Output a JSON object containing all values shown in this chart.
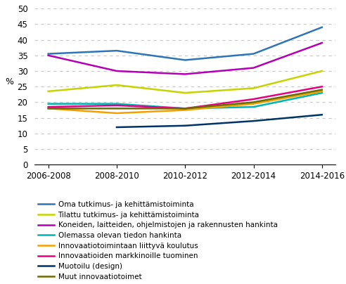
{
  "x_labels": [
    "2006-2008",
    "2008-2010",
    "2010-2012",
    "2012-2014",
    "2014-2016"
  ],
  "x_positions": [
    0,
    1,
    2,
    3,
    4
  ],
  "series": [
    {
      "label": "Oma tutkimus- ja kehittämistoiminta",
      "color": "#2e75b6",
      "values": [
        35.5,
        36.5,
        33.5,
        35.5,
        44.0
      ]
    },
    {
      "label": "Tilattu tutkimus- ja kehittämistoiminta",
      "color": "#c5d400",
      "values": [
        23.5,
        25.5,
        23.0,
        24.5,
        30.0
      ]
    },
    {
      "label": "Koneiden, laitteiden, ohjelmistojen ja rakennusten hankinta",
      "color": "#b400b4",
      "values": [
        35.0,
        30.0,
        29.0,
        31.0,
        39.0
      ]
    },
    {
      "label": "Olemassa olevan tiedon hankinta",
      "color": "#00b4b4",
      "values": [
        19.5,
        19.5,
        18.0,
        18.5,
        23.0
      ]
    },
    {
      "label": "Innovaatiotoimintaan liittyvä koulutus",
      "color": "#f4a100",
      "values": [
        18.0,
        16.5,
        17.5,
        19.5,
        23.5
      ]
    },
    {
      "label": "Innovaatioiden markkinoille tuominen",
      "color": "#e6007e",
      "values": [
        18.5,
        19.0,
        18.0,
        21.0,
        25.0
      ]
    },
    {
      "label": "Muotoilu (design)",
      "color": "#003366",
      "values": [
        null,
        12.0,
        12.5,
        14.0,
        16.0
      ]
    },
    {
      "label": "Muut innovaatiotoimet",
      "color": "#6b6b00",
      "values": [
        18.0,
        18.0,
        18.0,
        20.0,
        24.0
      ]
    }
  ],
  "ylabel": "%",
  "ylim": [
    0,
    50
  ],
  "yticks": [
    0,
    5,
    10,
    15,
    20,
    25,
    30,
    35,
    40,
    45,
    50
  ],
  "grid_color": "#c8c8c8",
  "background_color": "#ffffff",
  "legend_fontsize": 7.5,
  "tick_fontsize": 8.5,
  "linewidth": 1.8
}
